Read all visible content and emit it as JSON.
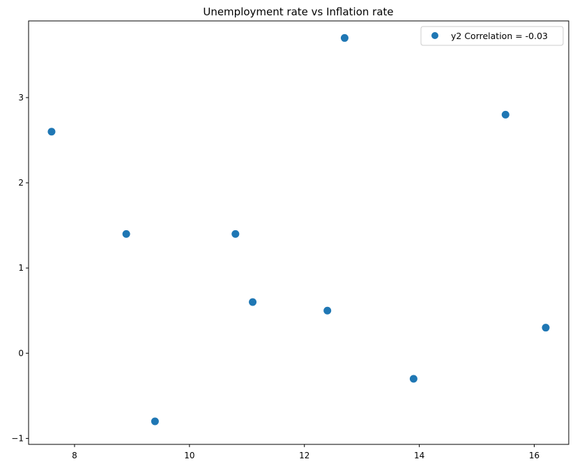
{
  "chart_data": {
    "type": "scatter",
    "title": "Unemployment rate vs Inflation rate",
    "xlabel": "",
    "ylabel": "",
    "xlim": [
      7.2,
      16.6
    ],
    "ylim": [
      -1.07,
      3.9
    ],
    "xticks": [
      8,
      10,
      12,
      14,
      16
    ],
    "yticks": [
      -1,
      0,
      1,
      2,
      3
    ],
    "grid": false,
    "legend_position": "top-right",
    "series": [
      {
        "name": "y2 Correlation = -0.03",
        "color": "#1f77b4",
        "points": [
          {
            "x": 7.6,
            "y": 2.6
          },
          {
            "x": 8.9,
            "y": 1.4
          },
          {
            "x": 9.4,
            "y": -0.8
          },
          {
            "x": 10.8,
            "y": 1.4
          },
          {
            "x": 11.1,
            "y": 0.6
          },
          {
            "x": 12.4,
            "y": 0.5
          },
          {
            "x": 12.7,
            "y": 3.7
          },
          {
            "x": 13.9,
            "y": -0.3
          },
          {
            "x": 15.5,
            "y": 2.8
          },
          {
            "x": 16.2,
            "y": 0.3
          }
        ]
      }
    ]
  }
}
